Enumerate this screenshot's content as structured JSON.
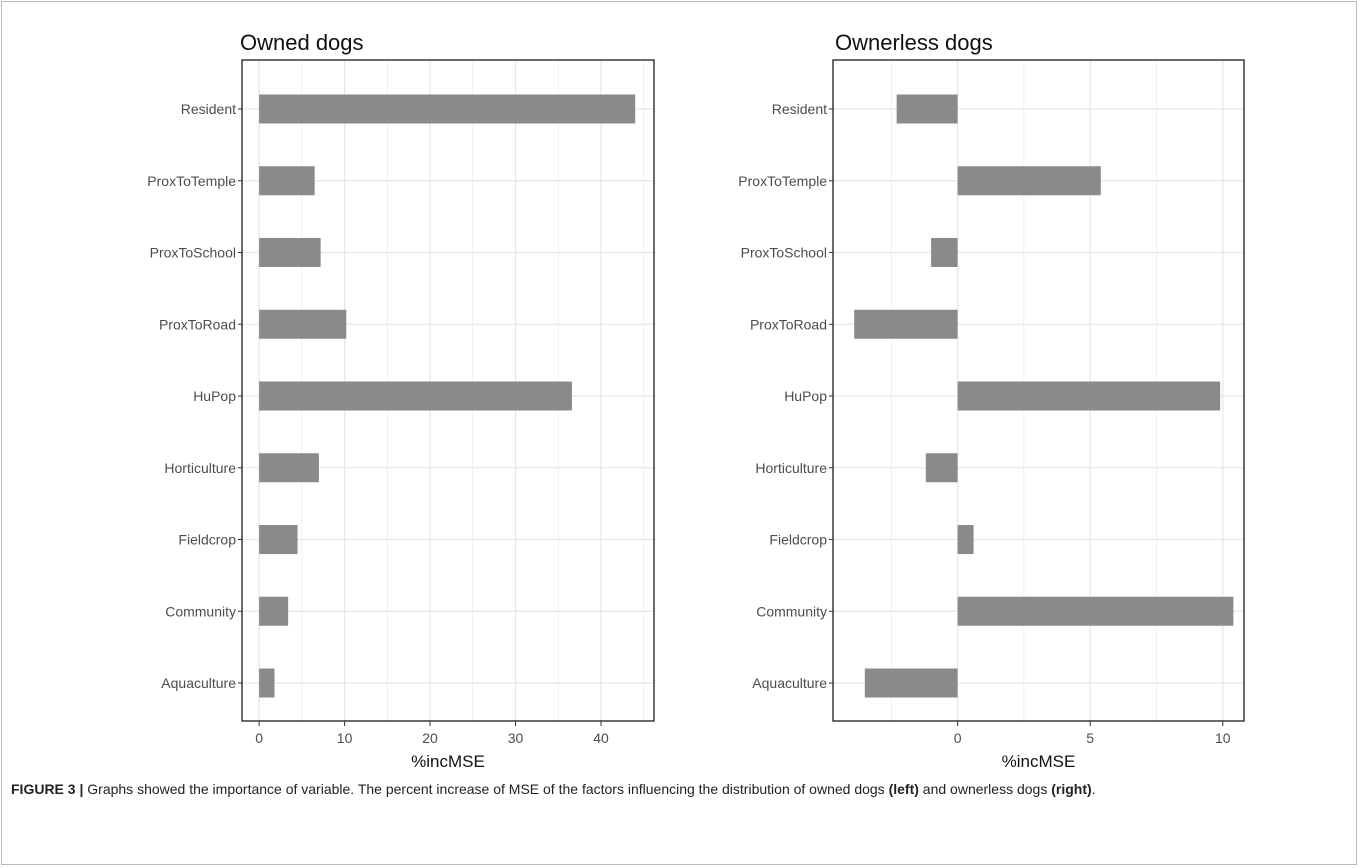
{
  "colors": {
    "bar": "#8a8a8a",
    "grid": "#e6e6e6",
    "axis_text": "#4d4d4d",
    "panel_border": "#1a1a1a"
  },
  "chart_data": [
    {
      "type": "bar",
      "orientation": "horizontal",
      "title": "Owned dogs",
      "xlabel": "%incMSE",
      "ylabel": "",
      "categories": [
        "Resident",
        "ProxToTemple",
        "ProxToSchool",
        "ProxToRoad",
        "HuPop",
        "Horticulture",
        "Fieldcrop",
        "Community",
        "Aquaculture"
      ],
      "values": [
        44.0,
        6.5,
        7.2,
        10.2,
        36.6,
        7.0,
        4.5,
        3.4,
        1.8
      ],
      "xlim": [
        -2.0,
        46.2
      ],
      "xticks": [
        0,
        10,
        20,
        30,
        40
      ],
      "grid": true,
      "legend": "none"
    },
    {
      "type": "bar",
      "orientation": "horizontal",
      "title": "Ownerless dogs",
      "xlabel": "%incMSE",
      "ylabel": "",
      "categories": [
        "Resident",
        "ProxToTemple",
        "ProxToSchool",
        "ProxToRoad",
        "HuPop",
        "Horticulture",
        "Fieldcrop",
        "Community",
        "Aquaculture"
      ],
      "values": [
        -2.3,
        5.4,
        -1.0,
        -3.9,
        9.9,
        -1.2,
        0.6,
        10.4,
        -3.5
      ],
      "xlim": [
        -4.7,
        10.8
      ],
      "xticks": [
        0,
        5,
        10
      ],
      "grid": true,
      "legend": "none"
    }
  ],
  "caption": {
    "label": "FIGURE 3 |",
    "part1": " Graphs showed the importance of variable. The percent increase of MSE of the factors influencing the distribution of owned dogs ",
    "left": "(left)",
    "part2": " and ownerless dogs ",
    "right": "(right)",
    "end": "."
  }
}
